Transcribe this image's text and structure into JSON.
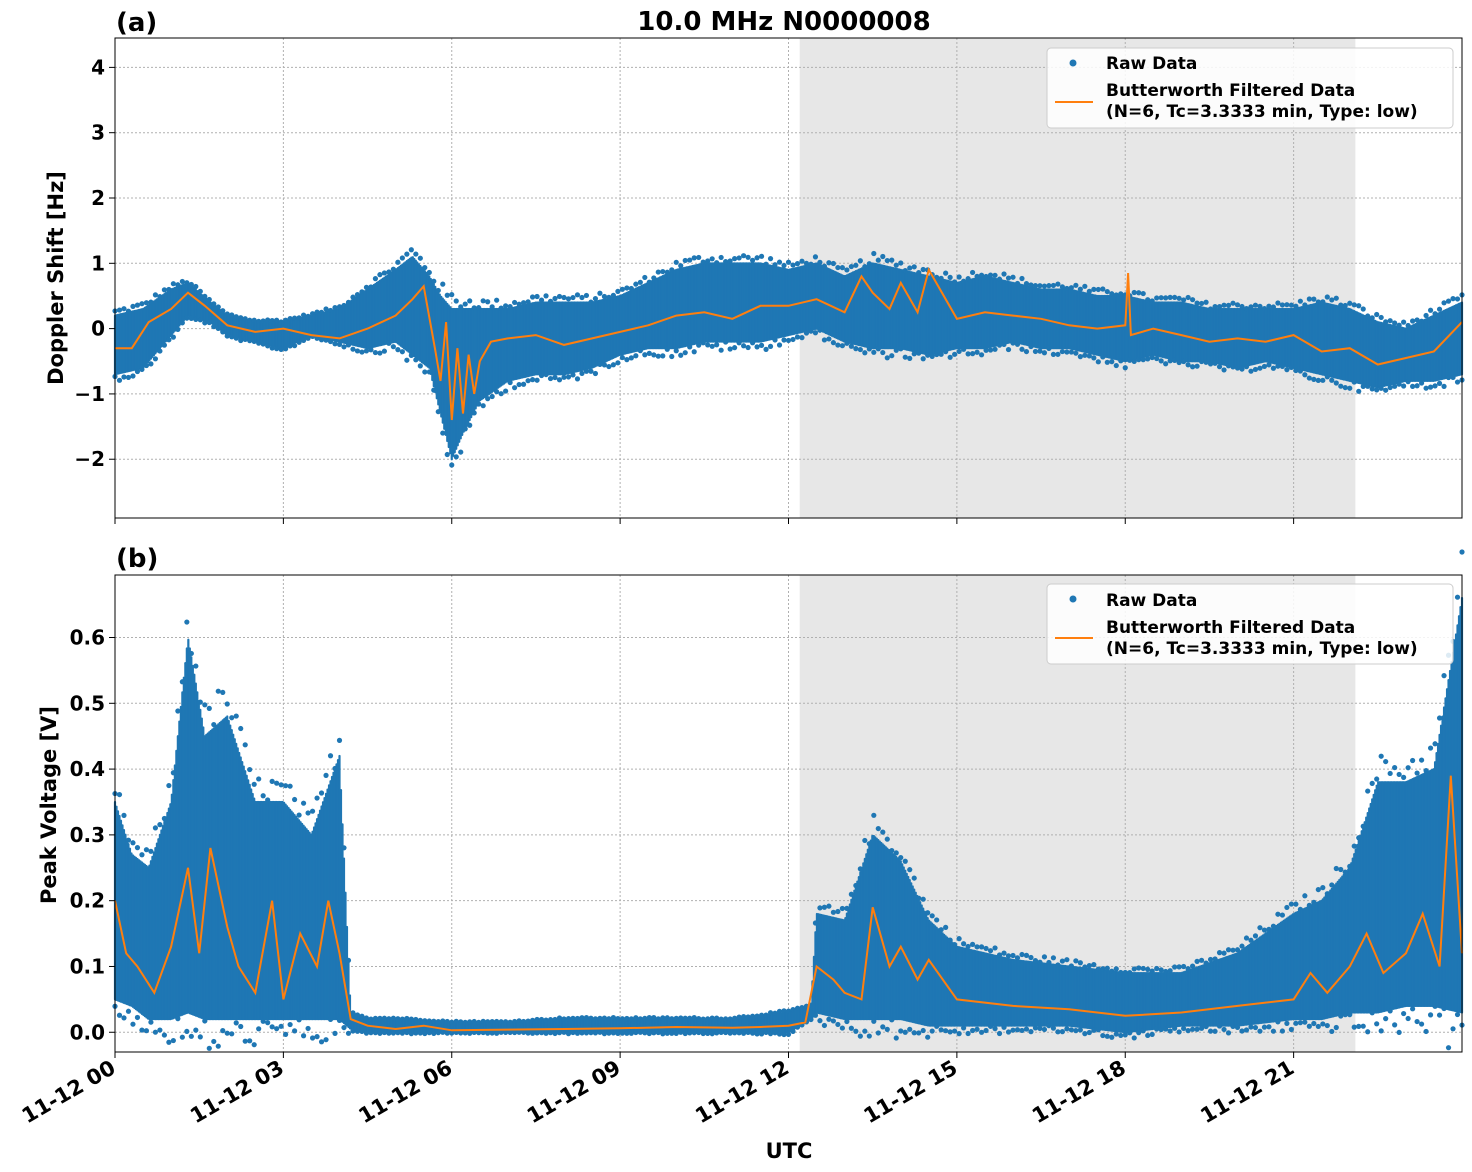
{
  "figure": {
    "title": "10.0 MHz N0000008",
    "xlabel": "UTC",
    "x_tick_labels": [
      "11-12 00",
      "11-12 03",
      "11-12 06",
      "11-12 09",
      "11-12 12",
      "11-12 15",
      "11-12 18",
      "11-12 21"
    ]
  },
  "colors": {
    "raw": "#1f77b4",
    "filtered": "#ff7f0e",
    "shade": "#e7e7e7",
    "grid": "#b0b0b0"
  },
  "legend": {
    "raw_label": "Raw Data",
    "filtered_label_line1": "Butterworth Filtered Data",
    "filtered_label_line2": "(N=6, Tc=3.3333 min, Type: low)",
    "placement": "top-right"
  },
  "chart_data": [
    {
      "type": "scatter",
      "panel_label": "(a)",
      "ylabel": "Doppler Shift [Hz]",
      "xlim_hours": [
        0,
        24
      ],
      "ylim": [
        -2.9,
        4.45
      ],
      "x_ticks_hours": [
        0,
        3,
        6,
        9,
        12,
        15,
        18,
        21
      ],
      "y_ticks": [
        -2,
        -1,
        0,
        1,
        2,
        3,
        4
      ],
      "y_tick_labels": [
        "−2",
        "−1",
        "0",
        "1",
        "2",
        "3",
        "4"
      ],
      "shaded_region_hours": [
        12.2,
        22.1
      ],
      "grid": true,
      "series": [
        {
          "name": "Raw Data",
          "kind": "band",
          "x_hours": [
            0,
            0.5,
            1,
            1.3,
            1.7,
            2,
            2.5,
            3,
            3.5,
            4,
            4.5,
            5,
            5.3,
            5.6,
            5.8,
            6,
            6.2,
            6.5,
            7,
            7.5,
            8,
            8.5,
            9,
            9.5,
            10,
            10.5,
            11,
            11.5,
            12,
            12.5,
            13,
            13.5,
            14,
            14.5,
            15,
            15.5,
            16,
            16.5,
            17,
            17.5,
            18,
            18.5,
            19,
            19.5,
            20,
            20.5,
            21,
            21.5,
            22,
            22.5,
            23,
            23.5,
            24
          ],
          "y_low": [
            -0.7,
            -0.6,
            -0.1,
            0.2,
            0.1,
            -0.1,
            -0.2,
            -0.3,
            -0.1,
            -0.2,
            -0.3,
            -0.2,
            -0.4,
            -0.6,
            -1.3,
            -2.0,
            -1.6,
            -1.1,
            -0.8,
            -0.7,
            -0.7,
            -0.6,
            -0.4,
            -0.3,
            -0.3,
            -0.2,
            -0.2,
            -0.2,
            -0.1,
            0.0,
            -0.2,
            -0.3,
            -0.3,
            -0.4,
            -0.3,
            -0.3,
            -0.2,
            -0.3,
            -0.3,
            -0.4,
            -0.5,
            -0.4,
            -0.5,
            -0.5,
            -0.6,
            -0.5,
            -0.6,
            -0.7,
            -0.8,
            -0.9,
            -0.8,
            -0.8,
            -0.7
          ],
          "y_high": [
            0.2,
            0.3,
            0.6,
            0.7,
            0.4,
            0.2,
            0.1,
            0.1,
            0.2,
            0.3,
            0.6,
            0.9,
            1.1,
            0.8,
            0.5,
            0.3,
            0.3,
            0.3,
            0.3,
            0.4,
            0.4,
            0.4,
            0.5,
            0.7,
            0.9,
            1.0,
            1.0,
            1.0,
            0.9,
            1.0,
            0.8,
            1.0,
            0.9,
            0.8,
            0.7,
            0.8,
            0.7,
            0.6,
            0.6,
            0.5,
            0.5,
            0.4,
            0.4,
            0.3,
            0.3,
            0.3,
            0.3,
            0.4,
            0.3,
            0.1,
            0.0,
            0.2,
            0.4
          ]
        },
        {
          "name": "Butterworth Filtered Data",
          "kind": "line",
          "x_hours": [
            0,
            0.3,
            0.6,
            1,
            1.3,
            1.6,
            2,
            2.5,
            3,
            3.5,
            4,
            4.5,
            5,
            5.3,
            5.5,
            5.7,
            5.8,
            5.9,
            6,
            6.1,
            6.2,
            6.3,
            6.4,
            6.5,
            6.7,
            7,
            7.5,
            8,
            8.5,
            9,
            9.5,
            10,
            10.5,
            11,
            11.5,
            12,
            12.5,
            13,
            13.3,
            13.5,
            13.8,
            14,
            14.3,
            14.5,
            15,
            15.5,
            16,
            16.5,
            17,
            17.5,
            18,
            18.05,
            18.1,
            18.5,
            19,
            19.5,
            20,
            20.5,
            21,
            21.5,
            22,
            22.5,
            23,
            23.5,
            24
          ],
          "y": [
            -0.3,
            -0.3,
            0.1,
            0.3,
            0.55,
            0.35,
            0.05,
            -0.05,
            0.0,
            -0.1,
            -0.15,
            0.0,
            0.2,
            0.45,
            0.65,
            -0.3,
            -0.8,
            0.1,
            -1.4,
            -0.3,
            -1.3,
            -0.4,
            -1.0,
            -0.5,
            -0.2,
            -0.15,
            -0.1,
            -0.25,
            -0.15,
            -0.05,
            0.05,
            0.2,
            0.25,
            0.15,
            0.35,
            0.35,
            0.45,
            0.25,
            0.8,
            0.55,
            0.3,
            0.7,
            0.25,
            0.9,
            0.15,
            0.25,
            0.2,
            0.15,
            0.05,
            0.0,
            0.05,
            0.85,
            -0.1,
            0.0,
            -0.1,
            -0.2,
            -0.15,
            -0.2,
            -0.1,
            -0.35,
            -0.3,
            -0.55,
            -0.45,
            -0.35,
            0.1
          ]
        }
      ]
    },
    {
      "type": "scatter",
      "panel_label": "(b)",
      "ylabel": "Peak Voltage [V]",
      "xlim_hours": [
        0,
        24
      ],
      "ylim": [
        -0.03,
        0.695
      ],
      "x_ticks_hours": [
        0,
        3,
        6,
        9,
        12,
        15,
        18,
        21
      ],
      "y_ticks": [
        0.0,
        0.1,
        0.2,
        0.3,
        0.4,
        0.5,
        0.6
      ],
      "y_tick_labels": [
        "0.0",
        "0.1",
        "0.2",
        "0.3",
        "0.4",
        "0.5",
        "0.6"
      ],
      "shaded_region_hours": [
        12.2,
        22.1
      ],
      "grid": true,
      "series": [
        {
          "name": "Raw Data",
          "kind": "band",
          "x_hours": [
            0,
            0.3,
            0.6,
            1,
            1.3,
            1.6,
            2,
            2.5,
            3,
            3.5,
            4,
            4.2,
            4.5,
            5,
            6,
            7,
            8,
            9,
            10,
            11,
            12,
            12.4,
            12.5,
            13,
            13.5,
            14,
            14.5,
            15,
            16,
            17,
            18,
            19,
            20,
            21,
            21.5,
            22,
            22.5,
            23,
            23.5,
            24
          ],
          "y_low": [
            0.05,
            0.04,
            0.02,
            0.02,
            0.03,
            0.02,
            0.02,
            0.02,
            0.02,
            0.02,
            0.02,
            0.005,
            0.0,
            0.0,
            0.0,
            0.0,
            0.0,
            0.0,
            0.0,
            0.0,
            0.0,
            0.02,
            0.03,
            0.02,
            0.02,
            0.02,
            0.01,
            0.01,
            0.01,
            0.01,
            0.0,
            0.01,
            0.01,
            0.02,
            0.02,
            0.03,
            0.03,
            0.04,
            0.04,
            0.03
          ],
          "y_high": [
            0.35,
            0.27,
            0.25,
            0.35,
            0.6,
            0.45,
            0.48,
            0.35,
            0.35,
            0.3,
            0.42,
            0.03,
            0.02,
            0.02,
            0.015,
            0.015,
            0.02,
            0.02,
            0.02,
            0.02,
            0.03,
            0.04,
            0.18,
            0.17,
            0.3,
            0.26,
            0.17,
            0.13,
            0.11,
            0.1,
            0.09,
            0.09,
            0.12,
            0.18,
            0.2,
            0.25,
            0.38,
            0.38,
            0.4,
            0.66
          ]
        },
        {
          "name": "Butterworth Filtered Data",
          "kind": "line",
          "x_hours": [
            0,
            0.2,
            0.4,
            0.7,
            1,
            1.3,
            1.5,
            1.7,
            2,
            2.2,
            2.5,
            2.8,
            3,
            3.3,
            3.6,
            3.8,
            4,
            4.2,
            4.5,
            5,
            5.5,
            6,
            7,
            8,
            9,
            10,
            11,
            11.5,
            12,
            12.3,
            12.5,
            12.8,
            13,
            13.3,
            13.5,
            13.8,
            14,
            14.3,
            14.5,
            15,
            16,
            17,
            18,
            19,
            20,
            21,
            21.3,
            21.6,
            22,
            22.3,
            22.6,
            23,
            23.3,
            23.6,
            23.8,
            24
          ],
          "y": [
            0.2,
            0.12,
            0.1,
            0.06,
            0.13,
            0.25,
            0.12,
            0.28,
            0.16,
            0.1,
            0.06,
            0.2,
            0.05,
            0.15,
            0.1,
            0.2,
            0.12,
            0.02,
            0.01,
            0.005,
            0.01,
            0.003,
            0.004,
            0.005,
            0.006,
            0.008,
            0.007,
            0.008,
            0.01,
            0.015,
            0.1,
            0.08,
            0.06,
            0.05,
            0.19,
            0.1,
            0.13,
            0.08,
            0.11,
            0.05,
            0.04,
            0.035,
            0.025,
            0.03,
            0.04,
            0.05,
            0.09,
            0.06,
            0.1,
            0.15,
            0.09,
            0.12,
            0.18,
            0.1,
            0.39,
            0.12
          ]
        }
      ]
    }
  ]
}
